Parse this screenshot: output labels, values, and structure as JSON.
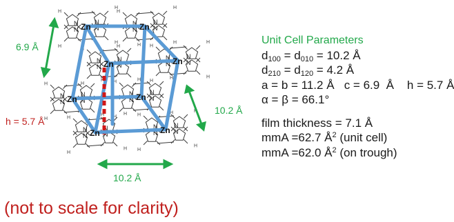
{
  "diagram": {
    "atom_label": "Zn",
    "ring_atom_label": "N",
    "h_label": "H",
    "dimension_labels": {
      "left_vertical": "6.9 Å",
      "interlayer": "h = 5.7 Å",
      "right_diagonal": "10.2 Å",
      "bottom": "10.2 Å"
    },
    "colors": {
      "cell_edges": "#5b9bd5",
      "interlayer_dash": "#d01818",
      "dimension_arrows": "#22a84a",
      "molecule_lines": "#3a3a3a"
    }
  },
  "params": {
    "title": "Unit Cell Parameters",
    "d100": "d",
    "d100_sub": "100",
    "d010_sub": "010",
    "d_value_1": "= 10.2 Å",
    "d210_sub": "210",
    "d120_sub": "120",
    "d_value_2": "= 4.2 Å",
    "abc_line": "a = b = 11.2 Å   c = 6.9  Å    h = 5.7 Å",
    "angle_line": "α = β = 66.1°",
    "film_thickness": "film thickness = 7.1 Å",
    "mma_unit_prefix": "mmA =62.7 Å",
    "mma_unit_suffix": " (unit cell)",
    "mma_trough_prefix": "mmA =62.0 Å",
    "mma_trough_suffix": " (on trough)",
    "squared": "2",
    "eq": "="
  },
  "note": "(not to scale for clarity)"
}
